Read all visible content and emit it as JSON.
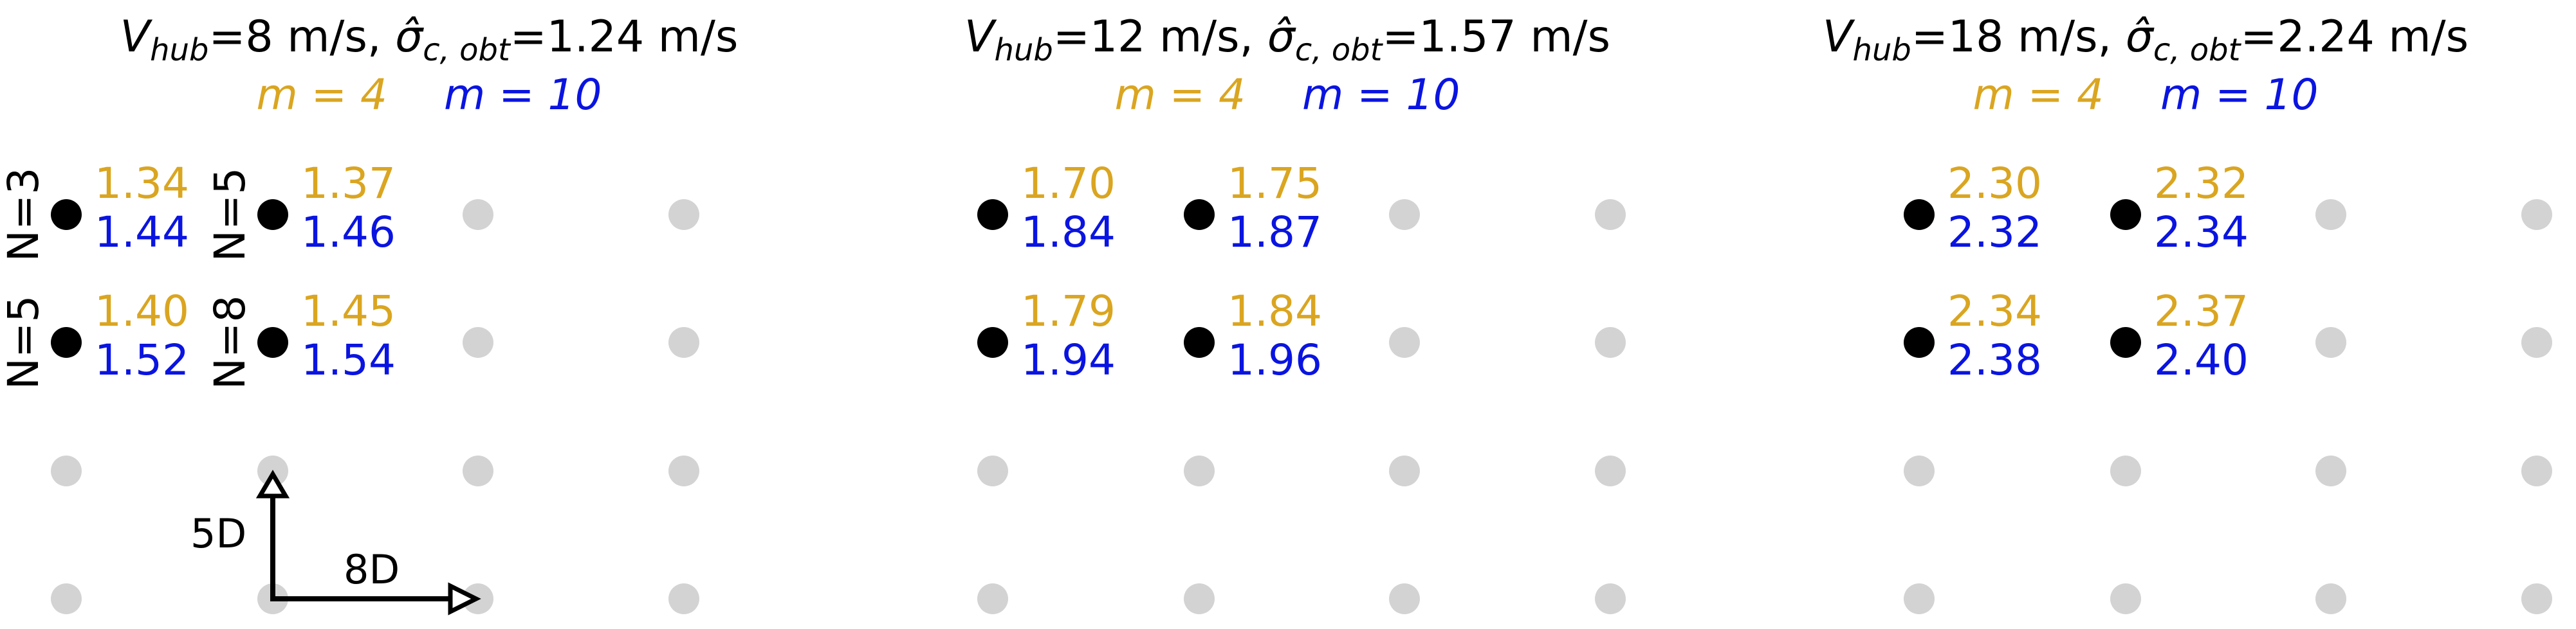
{
  "colors": {
    "m4": "#DAA520",
    "m10": "#0A14E0",
    "active_turbine": "#000000",
    "inactive_turbine": "#D3D3D3"
  },
  "legend": {
    "m4": "m = 4",
    "m10": "m = 10"
  },
  "panels": [
    {
      "title": {
        "v_label": "V",
        "v_sub": "hub",
        "v_value": "=8 m/s, ",
        "sigma_label": "σ̂",
        "sigma_sub": "c, obt",
        "sigma_value": "=1.24 m/s"
      },
      "row_labels": [
        "N=3",
        "N=5",
        "N=5",
        "N=8"
      ],
      "cells": [
        {
          "m4": "1.34",
          "m10": "1.44"
        },
        {
          "m4": "1.37",
          "m10": "1.46"
        },
        {
          "m4": "1.40",
          "m10": "1.52"
        },
        {
          "m4": "1.45",
          "m10": "1.54"
        }
      ]
    },
    {
      "title": {
        "v_label": "V",
        "v_sub": "hub",
        "v_value": "=12 m/s, ",
        "sigma_label": "σ̂",
        "sigma_sub": "c, obt",
        "sigma_value": "=1.57 m/s"
      },
      "cells": [
        {
          "m4": "1.70",
          "m10": "1.84"
        },
        {
          "m4": "1.75",
          "m10": "1.87"
        },
        {
          "m4": "1.79",
          "m10": "1.94"
        },
        {
          "m4": "1.84",
          "m10": "1.96"
        }
      ]
    },
    {
      "title": {
        "v_label": "V",
        "v_sub": "hub",
        "v_value": "=18 m/s, ",
        "sigma_label": "σ̂",
        "sigma_sub": "c, obt",
        "sigma_value": "=2.24 m/s"
      },
      "cells": [
        {
          "m4": "2.30",
          "m10": "2.32"
        },
        {
          "m4": "2.32",
          "m10": "2.34"
        },
        {
          "m4": "2.34",
          "m10": "2.38"
        },
        {
          "m4": "2.37",
          "m10": "2.40"
        }
      ]
    }
  ],
  "scale": {
    "vertical": "5D",
    "horizontal": "8D"
  }
}
